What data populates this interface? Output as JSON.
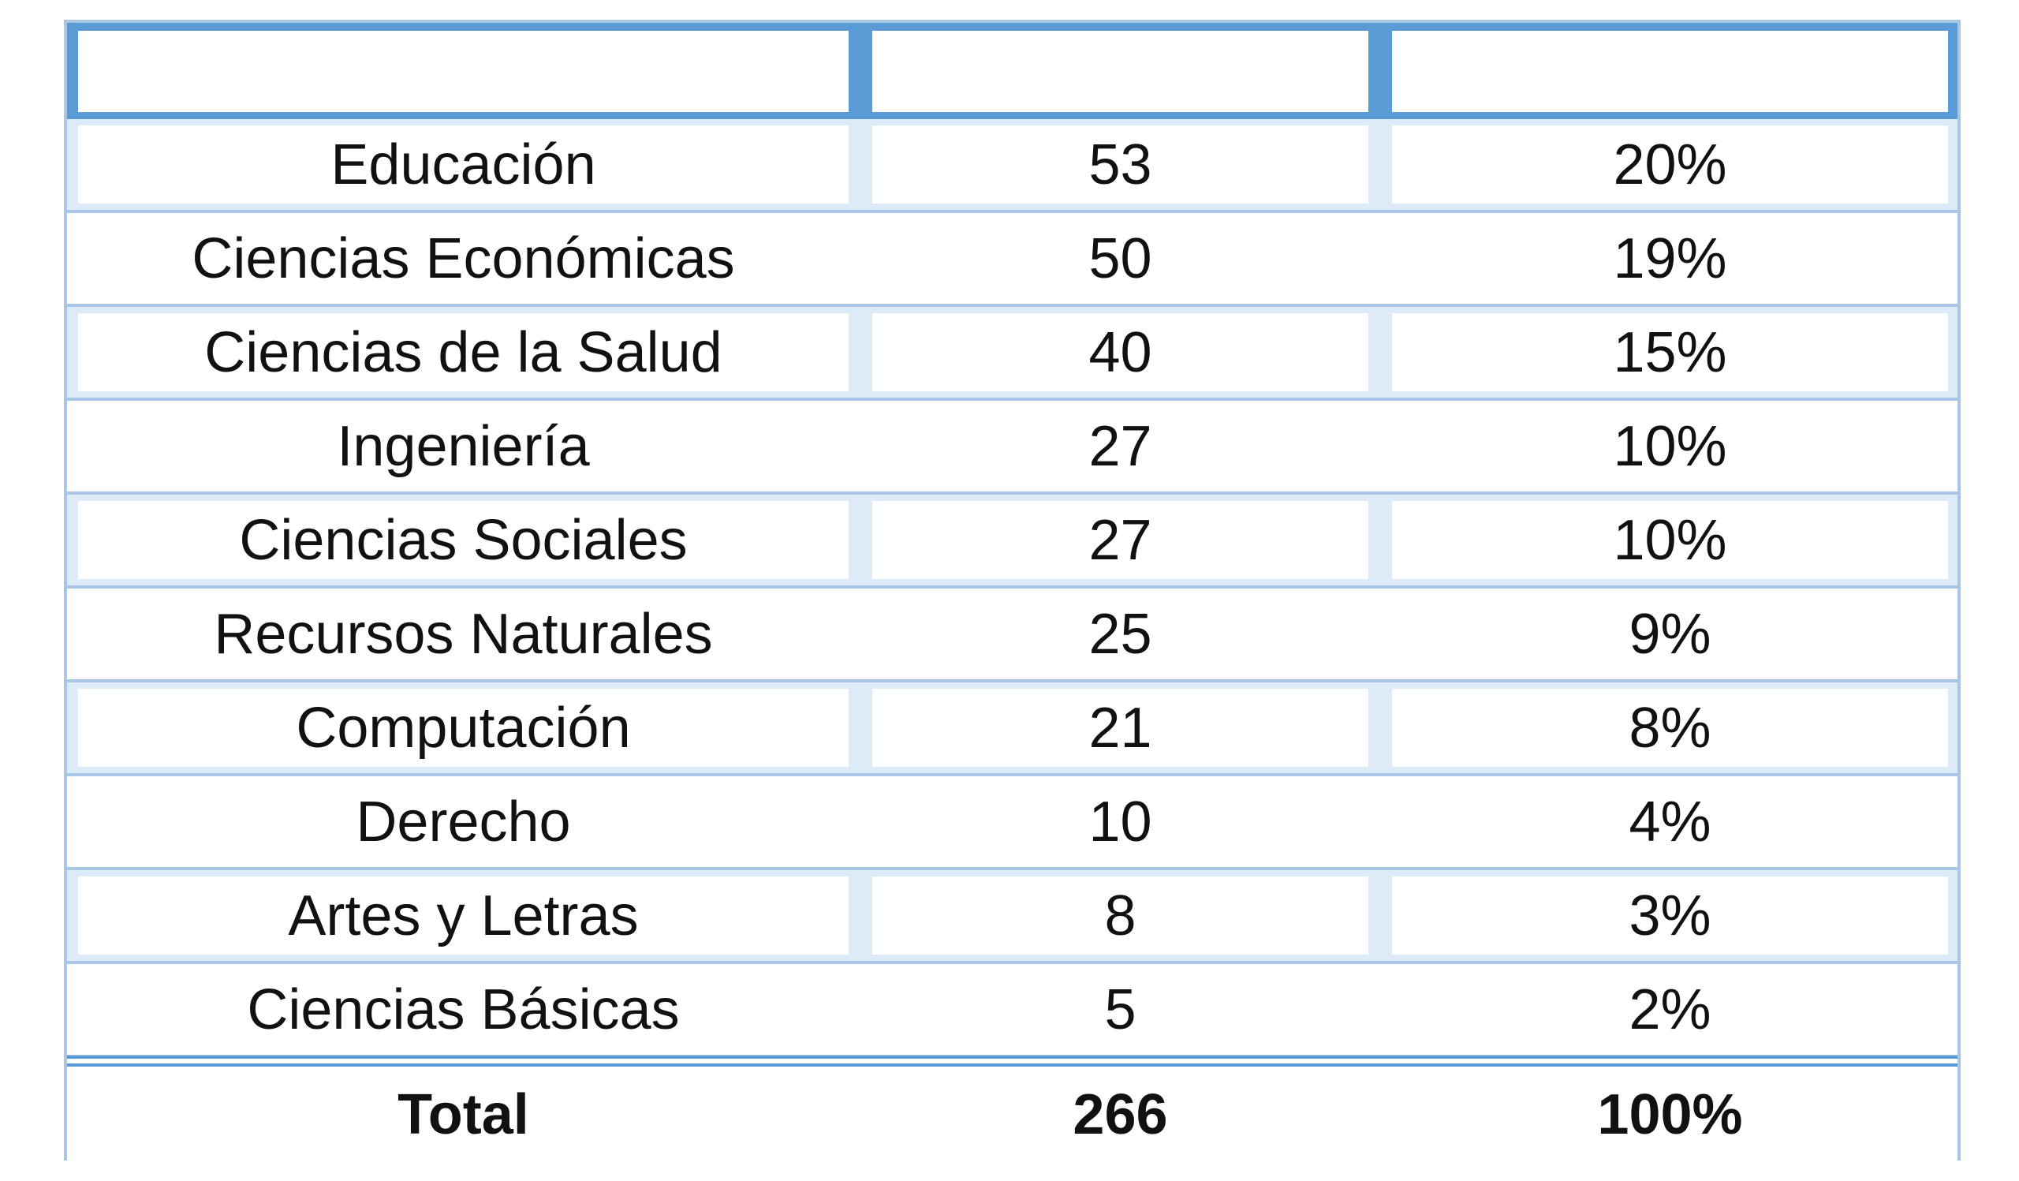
{
  "table": {
    "columns": [
      "",
      "",
      ""
    ],
    "rows": [
      {
        "label": "Educación",
        "count": "53",
        "percent": "20%"
      },
      {
        "label": "Ciencias Económicas",
        "count": "50",
        "percent": "19%"
      },
      {
        "label": "Ciencias de la Salud",
        "count": "40",
        "percent": "15%"
      },
      {
        "label": "Ingeniería",
        "count": "27",
        "percent": "10%"
      },
      {
        "label": "Ciencias Sociales",
        "count": "27",
        "percent": "10%"
      },
      {
        "label": "Recursos Naturales",
        "count": "25",
        "percent": "9%"
      },
      {
        "label": "Computación",
        "count": "21",
        "percent": "8%"
      },
      {
        "label": "Derecho",
        "count": "10",
        "percent": "4%"
      },
      {
        "label": "Artes y Letras",
        "count": "8",
        "percent": "3%"
      },
      {
        "label": "Ciencias Básicas",
        "count": "5",
        "percent": "2%"
      }
    ],
    "total": {
      "label": "Total",
      "count": "266",
      "percent": "100%"
    }
  },
  "colors": {
    "header": "#5b9bd5",
    "border": "#a9c6e6",
    "shade": "#ddeaf7"
  }
}
